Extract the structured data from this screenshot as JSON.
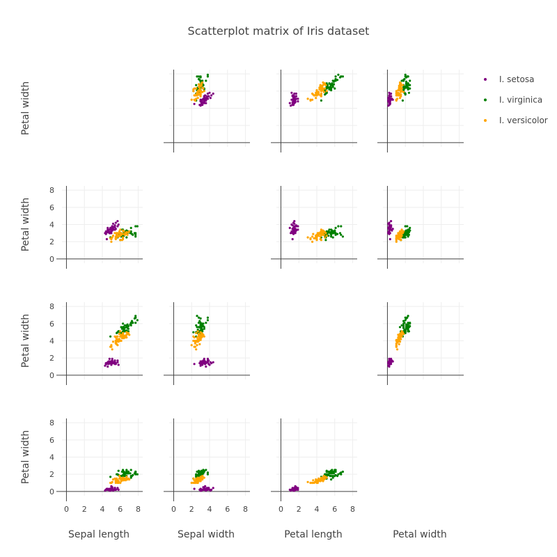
{
  "chart_data": {
    "type": "scatter",
    "title": "Scatterplot matrix of Iris dataset",
    "dimensions": [
      "Sepal length",
      "Sepal width",
      "Petal length",
      "Petal width"
    ],
    "row_label": "Petal width",
    "axis_range": [
      -0.5,
      8.5
    ],
    "ticks": [
      0,
      2,
      4,
      6,
      8
    ],
    "grid": true,
    "legend_position": "top-right",
    "show_diagonal": false,
    "show_upper": true,
    "series": [
      {
        "name": "I. setosa",
        "color": "#800080",
        "points": [
          [
            5.1,
            3.5,
            1.4,
            0.2
          ],
          [
            4.9,
            3.0,
            1.4,
            0.2
          ],
          [
            4.7,
            3.2,
            1.3,
            0.2
          ],
          [
            4.6,
            3.1,
            1.5,
            0.2
          ],
          [
            5.0,
            3.6,
            1.4,
            0.2
          ],
          [
            5.4,
            3.9,
            1.7,
            0.4
          ],
          [
            4.6,
            3.4,
            1.4,
            0.3
          ],
          [
            5.0,
            3.4,
            1.5,
            0.2
          ],
          [
            4.4,
            2.9,
            1.4,
            0.2
          ],
          [
            4.9,
            3.1,
            1.5,
            0.1
          ],
          [
            5.4,
            3.7,
            1.5,
            0.2
          ],
          [
            4.8,
            3.4,
            1.6,
            0.2
          ],
          [
            4.8,
            3.0,
            1.4,
            0.1
          ],
          [
            4.3,
            3.0,
            1.1,
            0.1
          ],
          [
            5.8,
            4.0,
            1.2,
            0.2
          ],
          [
            5.7,
            4.4,
            1.5,
            0.4
          ],
          [
            5.4,
            3.9,
            1.3,
            0.4
          ],
          [
            5.1,
            3.5,
            1.4,
            0.3
          ],
          [
            5.7,
            3.8,
            1.7,
            0.3
          ],
          [
            5.1,
            3.8,
            1.5,
            0.3
          ],
          [
            5.4,
            3.4,
            1.7,
            0.2
          ],
          [
            5.1,
            3.7,
            1.5,
            0.4
          ],
          [
            4.6,
            3.6,
            1.0,
            0.2
          ],
          [
            5.1,
            3.3,
            1.7,
            0.5
          ],
          [
            4.8,
            3.4,
            1.9,
            0.2
          ],
          [
            5.0,
            3.0,
            1.6,
            0.2
          ],
          [
            5.0,
            3.4,
            1.6,
            0.4
          ],
          [
            5.2,
            3.5,
            1.5,
            0.2
          ],
          [
            5.2,
            3.4,
            1.4,
            0.2
          ],
          [
            4.7,
            3.2,
            1.6,
            0.2
          ],
          [
            4.8,
            3.1,
            1.6,
            0.2
          ],
          [
            5.4,
            3.4,
            1.5,
            0.4
          ],
          [
            5.2,
            4.1,
            1.5,
            0.1
          ],
          [
            5.5,
            4.2,
            1.4,
            0.2
          ],
          [
            4.9,
            3.1,
            1.5,
            0.2
          ],
          [
            5.0,
            3.2,
            1.2,
            0.2
          ],
          [
            5.5,
            3.5,
            1.3,
            0.2
          ],
          [
            4.9,
            3.6,
            1.4,
            0.1
          ],
          [
            4.4,
            3.0,
            1.3,
            0.2
          ],
          [
            5.1,
            3.4,
            1.5,
            0.2
          ],
          [
            5.0,
            3.5,
            1.3,
            0.3
          ],
          [
            4.5,
            2.3,
            1.3,
            0.3
          ],
          [
            4.4,
            3.2,
            1.3,
            0.2
          ],
          [
            5.0,
            3.5,
            1.6,
            0.6
          ],
          [
            5.1,
            3.8,
            1.9,
            0.4
          ],
          [
            4.8,
            3.0,
            1.4,
            0.3
          ],
          [
            5.1,
            3.8,
            1.6,
            0.2
          ],
          [
            4.6,
            3.2,
            1.4,
            0.2
          ],
          [
            5.3,
            3.7,
            1.5,
            0.2
          ],
          [
            5.0,
            3.3,
            1.4,
            0.2
          ]
        ]
      },
      {
        "name": "I. virginica",
        "color": "#008000",
        "points": [
          [
            6.3,
            3.3,
            6.0,
            2.5
          ],
          [
            5.8,
            2.7,
            5.1,
            1.9
          ],
          [
            7.1,
            3.0,
            5.9,
            2.1
          ],
          [
            6.3,
            2.9,
            5.6,
            1.8
          ],
          [
            6.5,
            3.0,
            5.8,
            2.2
          ],
          [
            7.6,
            3.0,
            6.6,
            2.1
          ],
          [
            4.9,
            2.5,
            4.5,
            1.7
          ],
          [
            7.3,
            2.9,
            6.3,
            1.8
          ],
          [
            6.7,
            2.5,
            5.8,
            1.8
          ],
          [
            7.2,
            3.6,
            6.1,
            2.5
          ],
          [
            6.5,
            3.2,
            5.1,
            2.0
          ],
          [
            6.4,
            2.7,
            5.3,
            1.9
          ],
          [
            6.8,
            3.0,
            5.5,
            2.1
          ],
          [
            5.7,
            2.5,
            5.0,
            2.0
          ],
          [
            5.8,
            2.8,
            5.1,
            2.4
          ],
          [
            6.4,
            3.2,
            5.3,
            2.3
          ],
          [
            6.5,
            3.0,
            5.5,
            1.8
          ],
          [
            7.7,
            3.8,
            6.7,
            2.2
          ],
          [
            7.7,
            2.6,
            6.9,
            2.3
          ],
          [
            6.0,
            2.2,
            5.0,
            1.5
          ],
          [
            6.9,
            3.2,
            5.7,
            2.3
          ],
          [
            5.6,
            2.8,
            4.9,
            2.0
          ],
          [
            7.7,
            2.8,
            6.7,
            2.0
          ],
          [
            6.3,
            2.7,
            4.9,
            1.8
          ],
          [
            6.7,
            3.3,
            5.7,
            2.1
          ],
          [
            7.2,
            3.2,
            6.0,
            1.8
          ],
          [
            6.2,
            2.8,
            4.8,
            1.8
          ],
          [
            6.1,
            3.0,
            4.9,
            1.8
          ],
          [
            6.4,
            2.8,
            5.6,
            2.1
          ],
          [
            7.2,
            3.0,
            5.8,
            1.6
          ],
          [
            7.4,
            2.8,
            6.1,
            1.9
          ],
          [
            7.9,
            3.8,
            6.4,
            2.0
          ],
          [
            6.4,
            2.8,
            5.6,
            2.2
          ],
          [
            6.3,
            2.8,
            5.1,
            1.5
          ],
          [
            6.1,
            2.6,
            5.6,
            1.4
          ],
          [
            7.7,
            3.0,
            6.1,
            2.3
          ],
          [
            6.3,
            3.4,
            5.6,
            2.4
          ],
          [
            6.4,
            3.1,
            5.5,
            1.8
          ],
          [
            6.0,
            3.0,
            4.8,
            1.8
          ],
          [
            6.9,
            3.1,
            5.4,
            2.1
          ],
          [
            6.7,
            3.1,
            5.6,
            2.4
          ],
          [
            6.9,
            3.1,
            5.1,
            2.3
          ],
          [
            5.8,
            2.7,
            5.1,
            1.9
          ],
          [
            6.8,
            3.2,
            5.9,
            2.3
          ],
          [
            6.7,
            3.3,
            5.7,
            2.5
          ],
          [
            6.7,
            3.0,
            5.2,
            2.3
          ],
          [
            6.3,
            2.5,
            5.0,
            1.9
          ],
          [
            6.5,
            3.0,
            5.2,
            2.0
          ],
          [
            6.2,
            3.4,
            5.4,
            2.3
          ],
          [
            5.9,
            3.0,
            5.1,
            1.8
          ]
        ]
      },
      {
        "name": "I. versicolor",
        "color": "#ffa500",
        "points": [
          [
            7.0,
            3.2,
            4.7,
            1.4
          ],
          [
            6.4,
            3.2,
            4.5,
            1.5
          ],
          [
            6.9,
            3.1,
            4.9,
            1.5
          ],
          [
            5.5,
            2.3,
            4.0,
            1.3
          ],
          [
            6.5,
            2.8,
            4.6,
            1.5
          ],
          [
            5.7,
            2.8,
            4.5,
            1.3
          ],
          [
            6.3,
            3.3,
            4.7,
            1.6
          ],
          [
            4.9,
            2.4,
            3.3,
            1.0
          ],
          [
            6.6,
            2.9,
            4.6,
            1.3
          ],
          [
            5.2,
            2.7,
            3.9,
            1.4
          ],
          [
            5.0,
            2.0,
            3.5,
            1.0
          ],
          [
            5.9,
            3.0,
            4.2,
            1.5
          ],
          [
            6.0,
            2.2,
            4.0,
            1.0
          ],
          [
            6.1,
            2.9,
            4.7,
            1.4
          ],
          [
            5.6,
            2.9,
            3.6,
            1.3
          ],
          [
            6.7,
            3.1,
            4.4,
            1.4
          ],
          [
            5.6,
            3.0,
            4.5,
            1.5
          ],
          [
            5.8,
            2.7,
            4.1,
            1.0
          ],
          [
            6.2,
            2.2,
            4.5,
            1.5
          ],
          [
            5.6,
            2.5,
            3.9,
            1.1
          ],
          [
            5.9,
            3.2,
            4.8,
            1.8
          ],
          [
            6.1,
            2.8,
            4.0,
            1.3
          ],
          [
            6.3,
            2.5,
            4.9,
            1.5
          ],
          [
            6.1,
            2.8,
            4.7,
            1.2
          ],
          [
            6.4,
            2.9,
            4.3,
            1.3
          ],
          [
            6.6,
            3.0,
            4.4,
            1.4
          ],
          [
            6.8,
            2.8,
            4.8,
            1.4
          ],
          [
            6.7,
            3.0,
            5.0,
            1.7
          ],
          [
            6.0,
            2.9,
            4.5,
            1.5
          ],
          [
            5.7,
            2.6,
            3.5,
            1.0
          ],
          [
            5.5,
            2.4,
            3.8,
            1.1
          ],
          [
            5.5,
            2.4,
            3.7,
            1.0
          ],
          [
            5.8,
            2.7,
            3.9,
            1.2
          ],
          [
            6.0,
            2.7,
            5.1,
            1.6
          ],
          [
            5.4,
            3.0,
            4.5,
            1.5
          ],
          [
            6.0,
            3.4,
            4.5,
            1.6
          ],
          [
            6.7,
            3.1,
            4.7,
            1.5
          ],
          [
            6.3,
            2.3,
            4.4,
            1.3
          ],
          [
            5.6,
            3.0,
            4.1,
            1.3
          ],
          [
            5.5,
            2.5,
            4.0,
            1.3
          ],
          [
            5.5,
            2.6,
            4.4,
            1.2
          ],
          [
            6.1,
            3.0,
            4.6,
            1.4
          ],
          [
            5.8,
            2.6,
            4.0,
            1.2
          ],
          [
            5.0,
            2.3,
            3.3,
            1.0
          ],
          [
            5.6,
            2.7,
            4.2,
            1.3
          ],
          [
            5.7,
            3.0,
            4.2,
            1.2
          ],
          [
            5.7,
            2.9,
            4.2,
            1.3
          ],
          [
            6.2,
            2.9,
            4.3,
            1.3
          ],
          [
            5.1,
            2.5,
            3.0,
            1.1
          ],
          [
            5.7,
            2.8,
            4.1,
            1.3
          ]
        ]
      }
    ]
  }
}
